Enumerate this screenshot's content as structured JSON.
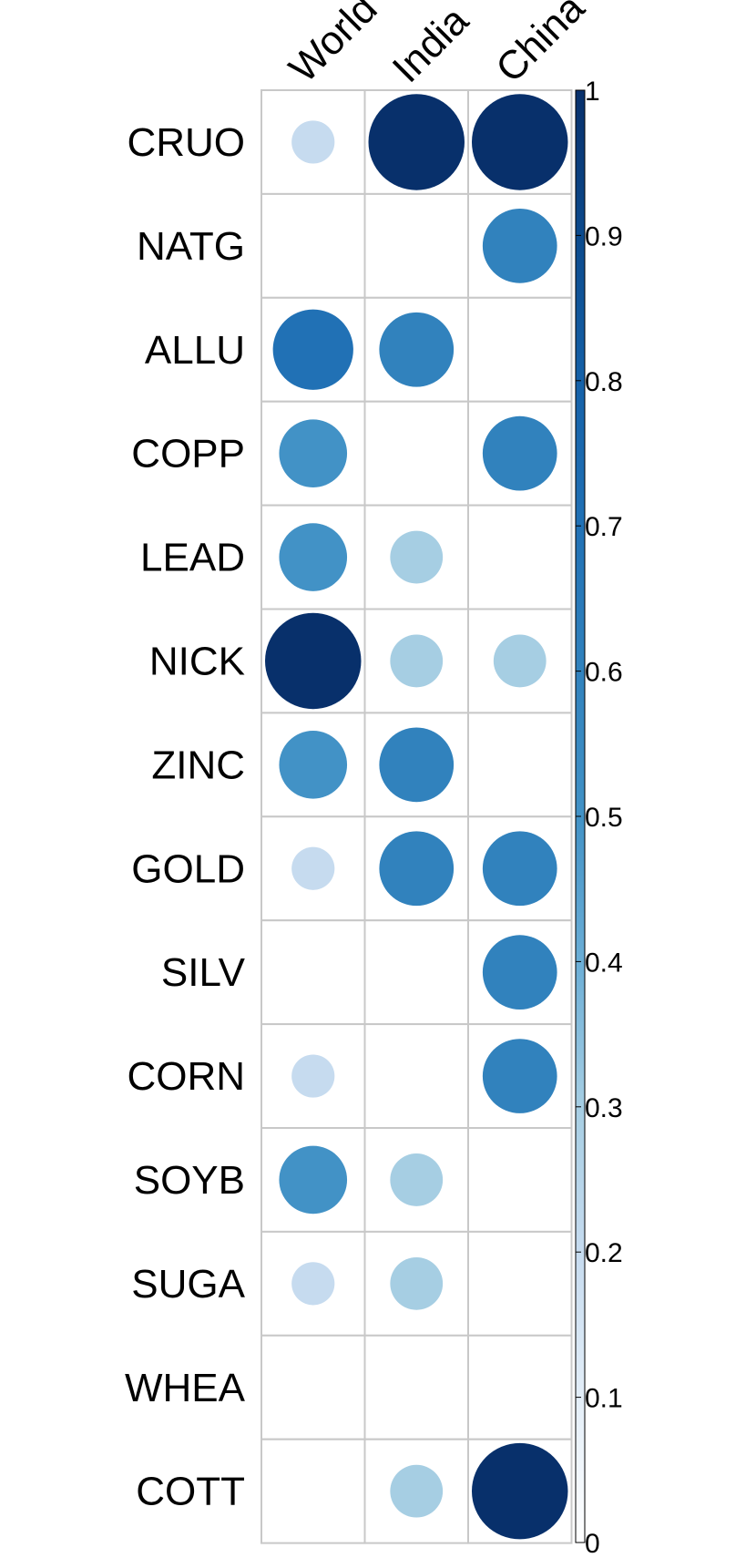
{
  "chart_data": {
    "type": "heatmap",
    "style": "circle-matrix",
    "rows": [
      "CRUO",
      "NATG",
      "ALLU",
      "COPP",
      "LEAD",
      "NICK",
      "ZINC",
      "GOLD",
      "SILV",
      "CORN",
      "SOYB",
      "SUGA",
      "WHEA",
      "COTT"
    ],
    "columns": [
      "World",
      "India",
      "China"
    ],
    "values": [
      [
        0.2,
        1.0,
        1.0
      ],
      [
        null,
        null,
        0.6
      ],
      [
        0.7,
        0.6,
        null
      ],
      [
        0.5,
        null,
        0.6
      ],
      [
        0.5,
        0.3,
        null
      ],
      [
        1.0,
        0.3,
        0.3
      ],
      [
        0.5,
        0.6,
        null
      ],
      [
        0.2,
        0.6,
        0.6
      ],
      [
        null,
        null,
        0.6
      ],
      [
        0.2,
        null,
        0.6
      ],
      [
        0.5,
        0.3,
        null
      ],
      [
        0.2,
        0.3,
        null
      ],
      [
        null,
        null,
        null
      ],
      [
        null,
        0.3,
        1.0
      ]
    ],
    "colorbar": {
      "min": 0,
      "max": 1,
      "ticks": [
        "0",
        "0.1",
        "0.2",
        "0.3",
        "0.4",
        "0.5",
        "0.6",
        "0.7",
        "0.8",
        "0.9",
        "1"
      ],
      "colors": [
        "#ffffff",
        "#e3eef8",
        "#c6dbef",
        "#a6cee3",
        "#6baed6",
        "#4292c6",
        "#3182bd",
        "#2171b5",
        "#1561a8",
        "#0c4a8c",
        "#08306b"
      ]
    },
    "grid": true,
    "legend": "right"
  }
}
